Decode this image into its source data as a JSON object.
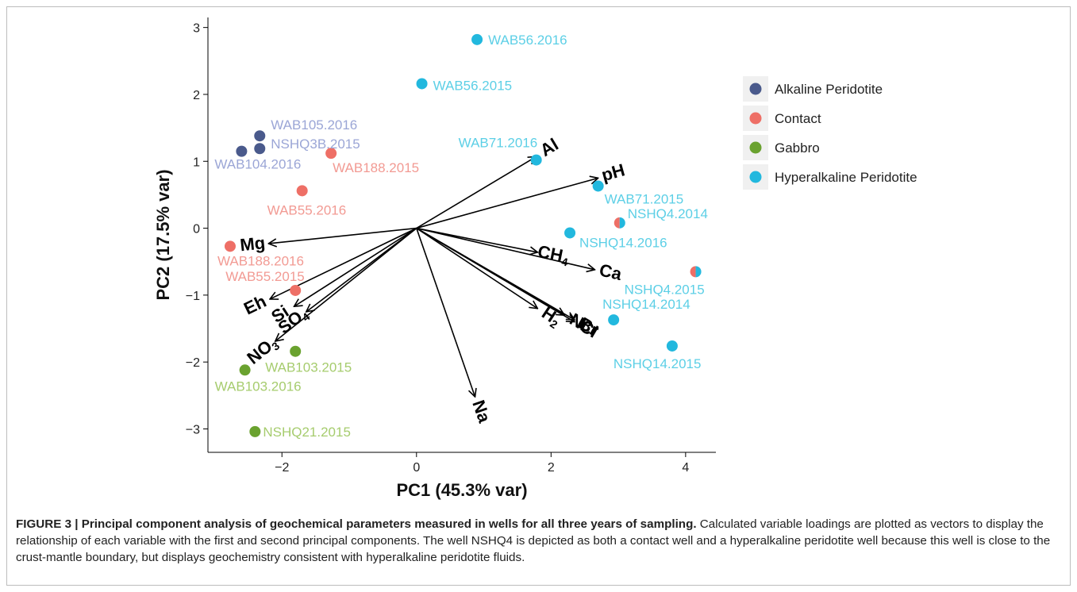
{
  "chart_data": {
    "type": "scatter",
    "xlabel": "PC1 (45.3% var)",
    "ylabel": "PC2 (17.5% var)",
    "xlim": [
      -3.1,
      4.45
    ],
    "ylim": [
      -3.35,
      3.15
    ],
    "xticks": [
      -2,
      0,
      2,
      4
    ],
    "xtick_labels": [
      "−2",
      "0",
      "2",
      "4"
    ],
    "yticks": [
      -3,
      -2,
      -1,
      0,
      1,
      2,
      3
    ],
    "ytick_labels": [
      "−3",
      "−2",
      "−1",
      "0",
      "1",
      "2",
      "3"
    ],
    "grid": false,
    "legend_position": "right",
    "groups": [
      {
        "name": "Alkaline Peridotite",
        "color": "#4a5a8c",
        "label_color": "#9ba6d6"
      },
      {
        "name": "Contact",
        "color": "#ee6f66",
        "label_color": "#f29a93"
      },
      {
        "name": "Gabbro",
        "color": "#6aa22f",
        "label_color": "#a6cc6e"
      },
      {
        "name": "Hyperalkaline Peridotite",
        "color": "#22b8de",
        "label_color": "#5ccfe6"
      }
    ],
    "points": [
      {
        "label": "WAB56.2016",
        "x": 0.9,
        "y": 2.82,
        "group": 3
      },
      {
        "label": "WAB56.2015",
        "x": 0.08,
        "y": 2.16,
        "group": 3
      },
      {
        "label": "WAB105.2016",
        "x": -2.33,
        "y": 1.38,
        "group": 0
      },
      {
        "label": "NSHQ3B.2015",
        "x": -2.33,
        "y": 1.19,
        "group": 0
      },
      {
        "label": "WAB104.2016",
        "x": -2.6,
        "y": 1.15,
        "group": 0
      },
      {
        "label": "WAB188.2015",
        "x": -1.27,
        "y": 1.12,
        "group": 1
      },
      {
        "label": "WAB55.2016",
        "x": -1.7,
        "y": 0.56,
        "group": 1
      },
      {
        "label": "WAB71.2016",
        "x": 1.78,
        "y": 1.02,
        "group": 3
      },
      {
        "label": "WAB71.2015",
        "x": 2.7,
        "y": 0.63,
        "group": 3
      },
      {
        "label": "NSHQ4.2014",
        "x": 3.02,
        "y": 0.08,
        "group": 3,
        "split_group": 1
      },
      {
        "label": "NSHQ14.2016",
        "x": 2.28,
        "y": -0.07,
        "group": 3
      },
      {
        "label": "WAB188.2016",
        "x": -2.77,
        "y": -0.27,
        "group": 1
      },
      {
        "label": "WAB55.2015",
        "x": -1.8,
        "y": -0.93,
        "group": 1
      },
      {
        "label": "NSHQ4.2015",
        "x": 4.15,
        "y": -0.65,
        "group": 3,
        "split_group": 1
      },
      {
        "label": "NSHQ14.2014",
        "x": 2.93,
        "y": -1.37,
        "group": 3
      },
      {
        "label": "NSHQ14.2015",
        "x": 3.8,
        "y": -1.76,
        "group": 3
      },
      {
        "label": "WAB103.2015",
        "x": -1.8,
        "y": -1.84,
        "group": 2
      },
      {
        "label": "WAB103.2016",
        "x": -2.55,
        "y": -2.12,
        "group": 2
      },
      {
        "label": "NSHQ21.2015",
        "x": -2.4,
        "y": -3.04,
        "group": 2
      }
    ],
    "loadings": [
      {
        "name": "Al",
        "x": 1.78,
        "y": 1.07
      },
      {
        "name": "pH",
        "x": 2.7,
        "y": 0.75
      },
      {
        "name": "Mg",
        "x": -2.2,
        "y": -0.23
      },
      {
        "name": "CH",
        "sub": "4",
        "x": 1.8,
        "y": -0.36
      },
      {
        "name": "Ca",
        "x": 2.65,
        "y": -0.62
      },
      {
        "name": "Eh",
        "x": -2.18,
        "y": -1.06
      },
      {
        "name": "Si",
        "x": -1.82,
        "y": -1.17
      },
      {
        "name": "SO",
        "sub": "4",
        "x": -1.64,
        "y": -1.25
      },
      {
        "name": "NO",
        "sub": "3",
        "x": -2.1,
        "y": -1.69
      },
      {
        "name": "H",
        "sub": "2",
        "x": 1.8,
        "y": -1.2
      },
      {
        "name": "Ni",
        "x": 2.2,
        "y": -1.3
      },
      {
        "name": "Cl",
        "x": 2.35,
        "y": -1.4
      },
      {
        "name": "Br",
        "x": 2.35,
        "y": -1.37
      },
      {
        "name": "Na",
        "x": 0.87,
        "y": -2.52
      }
    ]
  },
  "caption": {
    "title": "FIGURE 3 | Principal component analysis of geochemical parameters measured in wells for all three years of sampling.",
    "body": " Calculated variable loadings are plotted as vectors to display the relationship of each variable with the first and second principal components. The well NSHQ4 is depicted as both a contact well and a hyperalkaline peridotite well because this well is close to the crust-mantle boundary, but displays geochemistry consistent with hyperalkaline peridotite fluids."
  }
}
